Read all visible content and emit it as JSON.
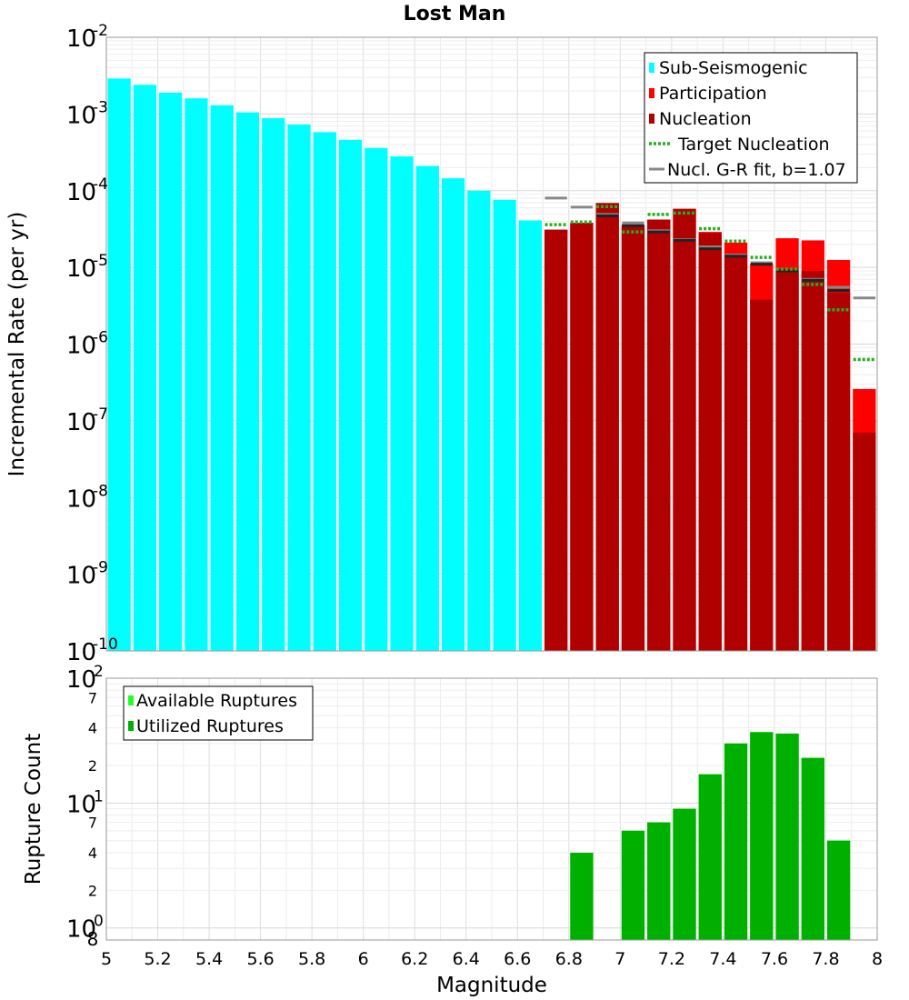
{
  "chart_data": [
    {
      "type": "bar",
      "title": "Lost Man",
      "xlabel": "",
      "ylabel": "Incremental Rate (per yr)",
      "yscale": "log",
      "ylim": [
        1e-10,
        0.01
      ],
      "xlim": [
        5,
        8
      ],
      "bin_width": 0.1,
      "ytick_labels": [
        {
          "base": "10",
          "exp": "-2"
        },
        {
          "base": "10",
          "exp": "-3"
        },
        {
          "base": "10",
          "exp": "-4"
        },
        {
          "base": "10",
          "exp": "-5"
        },
        {
          "base": "10",
          "exp": "-6"
        },
        {
          "base": "10",
          "exp": "-7"
        },
        {
          "base": "10",
          "exp": "-8"
        },
        {
          "base": "10",
          "exp": "-9"
        },
        {
          "base": "10",
          "exp": "-10"
        }
      ],
      "legend": {
        "position": "top-right",
        "entries": [
          "Sub-Seismogenic",
          "Participation",
          "Nucleation",
          "Target Nucleation",
          "Nucl. G-R fit, b=1.07"
        ]
      },
      "colors": {
        "sub_seismogenic": "#00ffff",
        "participation": "#ff0000",
        "nucleation": "#b00000",
        "target": "#22b022",
        "gr_fit": "#888888",
        "nucl_marker": "#222222"
      },
      "series": [
        {
          "name": "Sub-Seismogenic",
          "x": [
            5.05,
            5.15,
            5.25,
            5.35,
            5.45,
            5.55,
            5.65,
            5.75,
            5.85,
            5.95,
            6.05,
            6.15,
            6.25,
            6.35,
            6.45,
            6.55,
            6.65
          ],
          "values": [
            0.0029,
            0.0024,
            0.0019,
            0.0016,
            0.0013,
            0.00105,
            0.00088,
            0.00073,
            0.00058,
            0.00046,
            0.00036,
            0.00028,
            0.00021,
            0.000145,
            0.0001,
            7.6e-05,
            4.1e-05
          ]
        },
        {
          "name": "Participation",
          "x": [
            6.75,
            6.85,
            6.95,
            7.05,
            7.15,
            7.25,
            7.35,
            7.45,
            7.55,
            7.65,
            7.75,
            7.85,
            7.95
          ],
          "values": [
            3.1e-05,
            3.8e-05,
            6.9e-05,
            3.6e-05,
            4.2e-05,
            5.8e-05,
            2.9e-05,
            2.1e-05,
            1.1e-05,
            2.4e-05,
            2.25e-05,
            1.25e-05,
            2.6e-07
          ]
        },
        {
          "name": "Nucleation",
          "x": [
            6.75,
            6.85,
            6.95,
            7.05,
            7.15,
            7.25,
            7.35,
            7.45,
            7.55,
            7.65,
            7.75,
            7.85,
            7.95
          ],
          "values": [
            3.1e-05,
            3.8e-05,
            6.9e-05,
            3.4e-05,
            4.2e-05,
            5.8e-05,
            2.8e-05,
            1.5e-05,
            3.8e-06,
            9e-06,
            9e-06,
            4.7e-06,
            7e-08
          ]
        },
        {
          "name": "Target Nucleation",
          "x": [
            6.75,
            6.85,
            6.95,
            7.05,
            7.15,
            7.25,
            7.35,
            7.45,
            7.55,
            7.65,
            7.75,
            7.85,
            7.95
          ],
          "values": [
            3.6e-05,
            3.9e-05,
            6.2e-05,
            2.9e-05,
            4.9e-05,
            5.1e-05,
            3.2e-05,
            2.2e-05,
            1.35e-05,
            9.5e-06,
            6e-06,
            2.8e-06,
            6.3e-07
          ]
        },
        {
          "name": "Nucl. G-R fit, b=1.07",
          "x": [
            6.75,
            6.85,
            6.95,
            7.05,
            7.15,
            7.25,
            7.35,
            7.45,
            7.55,
            7.65,
            7.75,
            7.85,
            7.95
          ],
          "values": [
            8e-05,
            6.1e-05,
            4.9e-05,
            3.8e-05,
            3e-05,
            2.3e-05,
            1.85e-05,
            1.45e-05,
            1.15e-05,
            9e-06,
            7e-06,
            5.5e-06,
            4e-06
          ]
        },
        {
          "name": "Nucleation Markers",
          "x": [
            6.95,
            7.05,
            7.15,
            7.25,
            7.35,
            7.45,
            7.55,
            7.65,
            7.75,
            7.85
          ],
          "values": [
            4.7e-05,
            3.5e-05,
            2.9e-05,
            2.25e-05,
            1.75e-05,
            1.4e-05,
            1.1e-05,
            9e-06,
            6.8e-06,
            5e-06
          ]
        }
      ]
    },
    {
      "type": "bar",
      "title": "",
      "xlabel": "Magnitude",
      "ylabel": "Rupture Count",
      "yscale": "log",
      "ylim": [
        0.8,
        100
      ],
      "xlim": [
        5,
        8
      ],
      "bin_width": 0.1,
      "xtick_labels": [
        "5",
        "5.2",
        "5.4",
        "5.6",
        "5.8",
        "6",
        "6.2",
        "6.4",
        "6.6",
        "6.8",
        "7",
        "7.2",
        "7.4",
        "7.6",
        "7.8",
        "8"
      ],
      "ytick_labels": [
        {
          "base": "10",
          "exp": "2"
        },
        {
          "base": "10",
          "exp": "1"
        },
        {
          "base": "10",
          "exp": "0"
        }
      ],
      "minor_tick_labels": [
        "7",
        "4",
        "2",
        "7",
        "4",
        "2",
        "8"
      ],
      "legend": {
        "position": "top-left",
        "entries": [
          "Available Ruptures",
          "Utilized Ruptures"
        ]
      },
      "colors": {
        "available": "#22ff22",
        "utilized": "#00b000"
      },
      "series": [
        {
          "name": "Available Ruptures",
          "x": [
            6.85,
            7.05,
            7.15,
            7.25,
            7.35,
            7.45,
            7.55,
            7.65,
            7.75,
            7.85
          ],
          "values": [
            4,
            6,
            7,
            9,
            17,
            30,
            37,
            36,
            23,
            5
          ]
        },
        {
          "name": "Utilized Ruptures",
          "x": [
            6.85,
            7.05,
            7.15,
            7.25,
            7.35,
            7.45,
            7.55,
            7.65,
            7.75,
            7.85
          ],
          "values": [
            4,
            6,
            7,
            9,
            17,
            30,
            37,
            36,
            23,
            5
          ]
        }
      ]
    }
  ]
}
